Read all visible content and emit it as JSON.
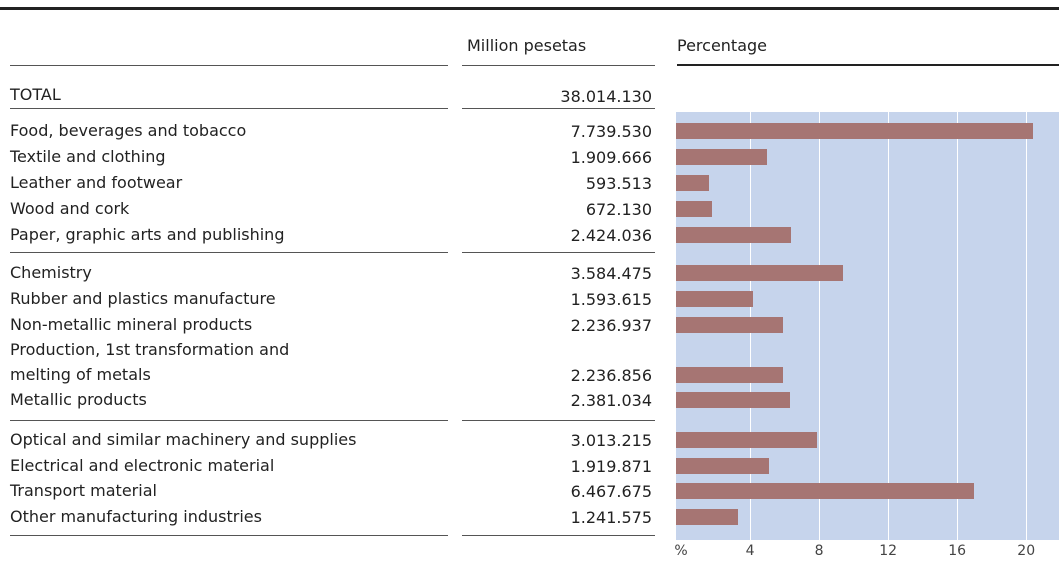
{
  "header": {
    "columns": [
      "Million pesetas",
      "Percentage"
    ]
  },
  "total": {
    "label": "TOTAL",
    "value": "38.014.130"
  },
  "chart_data": {
    "type": "bar",
    "orientation": "horizontal",
    "categories": [
      "Food, beverages and tobacco",
      "Textile and clothing",
      "Leather and footwear",
      "Wood and cork",
      "Paper, graphic arts and publishing",
      "Chemistry",
      "Rubber and plastics manufacture",
      "Non-metallic mineral products",
      "Production, 1st transformation and\nmelting of metals",
      "Metallic products",
      "Optical and similar machinery and supplies",
      "Electrical and electronic material",
      "Transport material",
      "Other manufacturing industries"
    ],
    "amounts": [
      "7.739.530",
      "1.909.666",
      "593.513",
      "672.130",
      "2.424.036",
      "3.584.475",
      "1.593.615",
      "2.236.937",
      "2.236.856",
      "2.381.034",
      "3.013.215",
      "1.919.871",
      "6.467.675",
      "1.241.575"
    ],
    "values": [
      20.4,
      5.0,
      1.6,
      1.8,
      6.4,
      9.4,
      4.2,
      5.9,
      5.9,
      6.3,
      7.9,
      5.1,
      17.0,
      3.3
    ],
    "color": "#a67573",
    "xlim": [
      0,
      21.9
    ],
    "xticks": [
      {
        "value": 0,
        "label": "%"
      },
      4,
      8,
      12,
      16,
      20
    ],
    "grid": true
  }
}
